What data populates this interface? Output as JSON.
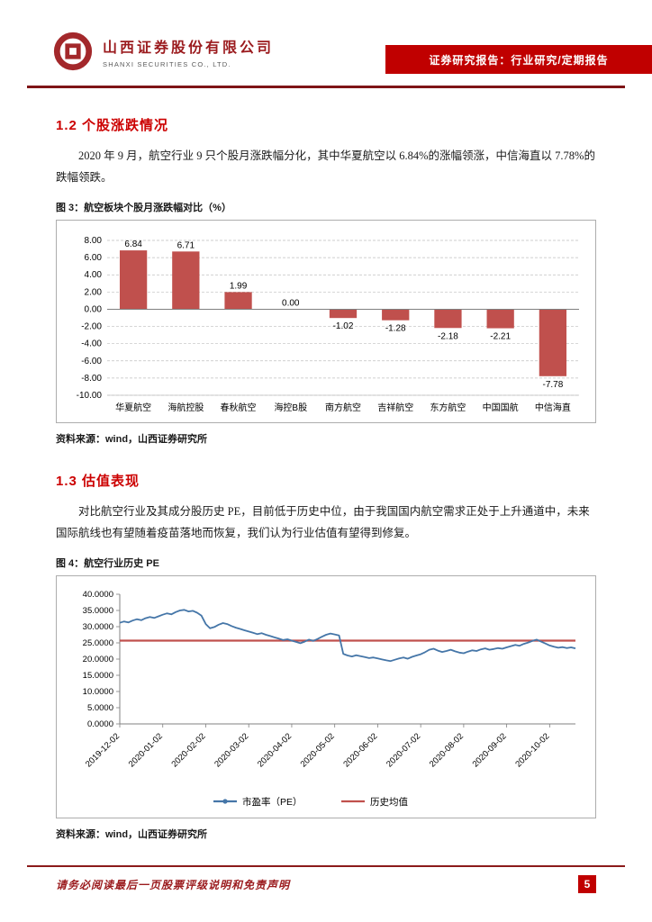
{
  "header": {
    "company_cn": "山西证券股份有限公司",
    "company_en": "SHANXI SECURITIES CO., LTD.",
    "banner": "证券研究报告：行业研究/定期报告"
  },
  "section_1_2": {
    "heading": "1.2 个股涨跌情况",
    "paragraph": "2020 年 9 月，航空行业 9 只个股月涨跌幅分化，其中华夏航空以 6.84%的涨幅领涨，中信海直以 7.78%的跌幅领跌。"
  },
  "section_1_3": {
    "heading": "1.3 估值表现",
    "paragraph": "对比航空行业及其成分股历史 PE，目前低于历史中位，由于我国国内航空需求正处于上升通道中，未来国际航线也有望随着疫苗落地而恢复，我们认为行业估值有望得到修复。"
  },
  "figures": {
    "fig3": {
      "caption": "图 3：航空板块个股月涨跌幅对比（%）",
      "source": "资料来源：wind，山西证券研究所"
    },
    "fig4": {
      "caption": "图 4：航空行业历史 PE",
      "source": "资料来源：wind，山西证券研究所"
    }
  },
  "footer": {
    "disclaimer": "请务必阅读最后一页股票评级说明和免责声明",
    "page_number": "5"
  },
  "colors": {
    "accent_red": "#c00000",
    "heading_red": "#cc0000",
    "rule_maroon": "#7e1416",
    "bar_red": "#c0504d",
    "line_blue": "#4576a8",
    "mean_red": "#c0504d"
  },
  "chart_data": [
    {
      "type": "bar",
      "title": "航空板块个股月涨跌幅对比（%）",
      "categories": [
        "华夏航空",
        "海航控股",
        "春秋航空",
        "海控B股",
        "南方航空",
        "吉祥航空",
        "东方航空",
        "中国国航",
        "中信海直"
      ],
      "values": [
        6.84,
        6.71,
        1.99,
        0.0,
        -1.02,
        -1.28,
        -2.18,
        -2.21,
        -7.78
      ],
      "value_labels": [
        "6.84",
        "6.71",
        "1.99",
        "0.00",
        "-1.02",
        "-1.28",
        "-2.18",
        "-2.21",
        "-7.78"
      ],
      "bar_color": "#c0504d",
      "ylim": [
        -10,
        8
      ],
      "ytick": 2,
      "grid": "dashed-horizontal",
      "legend": "none"
    },
    {
      "type": "line",
      "title": "航空行业历史 PE",
      "x_tick_labels": [
        "2019-12-02",
        "2020-01-02",
        "2020-02-02",
        "2020-03-02",
        "2020-04-02",
        "2020-05-02",
        "2020-06-02",
        "2020-07-02",
        "2020-08-02",
        "2020-09-02",
        "2020-10-02"
      ],
      "x_tick_indices": [
        0,
        10,
        20,
        30,
        40,
        50,
        60,
        70,
        80,
        90,
        100
      ],
      "ylim": [
        0,
        40
      ],
      "ytick": 5,
      "ytick_decimals": 4,
      "grid": "off",
      "legend_position": "bottom-center",
      "series": [
        {
          "name": "市盈率（PE）",
          "color": "#4576a8",
          "values": [
            31.2,
            31.6,
            31.3,
            31.9,
            32.3,
            32.0,
            32.6,
            33.0,
            32.7,
            33.2,
            33.7,
            34.1,
            33.8,
            34.5,
            35.0,
            35.2,
            34.7,
            34.9,
            34.3,
            33.4,
            30.8,
            29.5,
            29.9,
            30.6,
            31.1,
            30.8,
            30.2,
            29.7,
            29.3,
            28.9,
            28.5,
            28.1,
            27.7,
            28.0,
            27.5,
            27.1,
            26.7,
            26.3,
            25.9,
            26.1,
            25.7,
            25.3,
            24.9,
            25.4,
            26.0,
            25.6,
            26.2,
            26.9,
            27.5,
            27.9,
            27.6,
            27.3,
            21.6,
            21.1,
            20.8,
            21.2,
            20.9,
            20.6,
            20.3,
            20.5,
            20.2,
            19.9,
            19.6,
            19.4,
            19.8,
            20.2,
            20.5,
            20.1,
            20.7,
            21.1,
            21.5,
            22.1,
            22.9,
            23.2,
            22.6,
            22.2,
            22.5,
            22.9,
            22.4,
            22.0,
            21.8,
            22.3,
            22.7,
            22.5,
            23.0,
            23.3,
            22.9,
            23.1,
            23.4,
            23.2,
            23.6,
            24.0,
            24.4,
            24.1,
            24.7,
            25.1,
            25.6,
            26.0,
            25.4,
            24.8,
            24.2,
            23.8,
            23.5,
            23.7,
            23.4,
            23.6,
            23.3
          ]
        },
        {
          "name": "历史均值",
          "color": "#c0504d",
          "constant": 25.7
        }
      ]
    }
  ]
}
